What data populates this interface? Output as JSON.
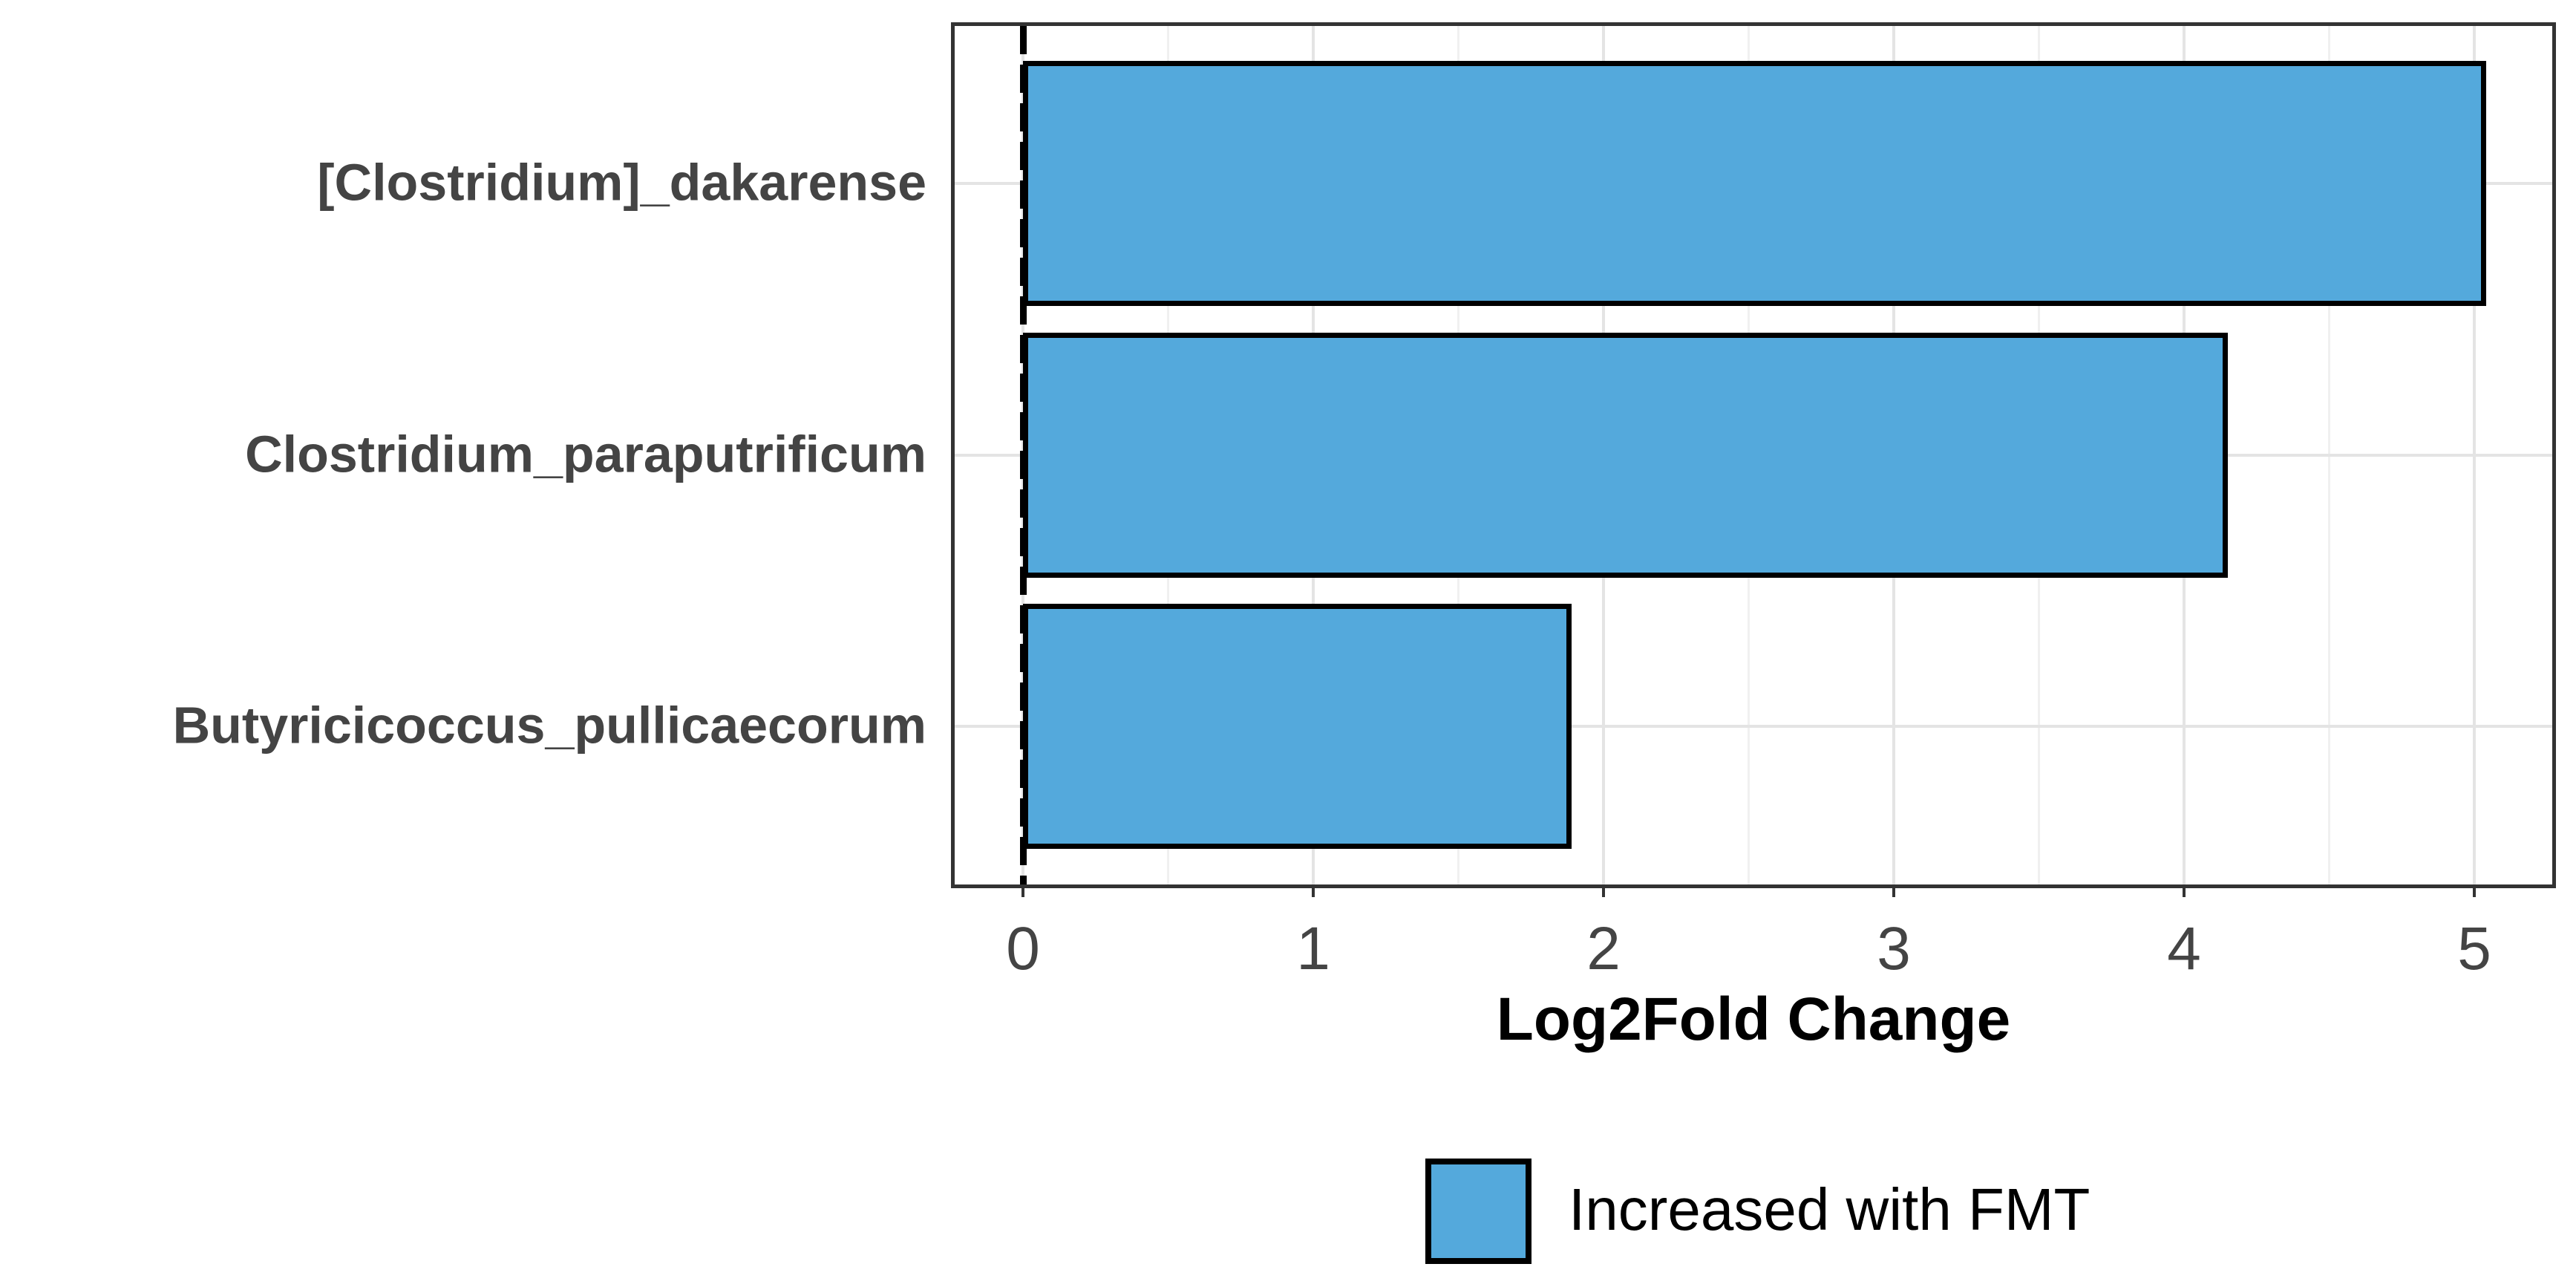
{
  "chart_data": {
    "type": "bar",
    "orientation": "horizontal",
    "title": "",
    "xlabel": "Log2Fold Change",
    "ylabel": "",
    "categories": [
      "[Clostridium]_dakarense",
      "Clostridium_paraputrificum",
      "Butyricicoccus_pullicaecorum"
    ],
    "values": [
      5.04,
      4.15,
      1.89
    ],
    "x_ticks": [
      0,
      1,
      2,
      3,
      4,
      5
    ],
    "x_tick_labels": [
      "0",
      "1",
      "2",
      "3",
      "4",
      "5"
    ],
    "x_minor_ticks": [
      0.5,
      1.5,
      2.5,
      3.5,
      4.5
    ],
    "xlim": [
      -0.24,
      5.27
    ],
    "grid": "major-and-minor-vertical, major-horizontal-at-categories",
    "zero_reference_line": {
      "x": 0,
      "style": "dashed",
      "color": "#000000"
    },
    "legend": {
      "position": "bottom",
      "entries": [
        {
          "label": "Increased with FMT",
          "swatch_color": "#54a9dc"
        }
      ]
    }
  },
  "colors": {
    "bar_fill": "#54a9dc",
    "bar_border": "#000000",
    "panel_border": "#333333",
    "grid_major": "#e4e4e4",
    "grid_minor": "#f0f0f0",
    "axis_text": "#444444",
    "title_text": "#000000",
    "background": "#ffffff"
  }
}
